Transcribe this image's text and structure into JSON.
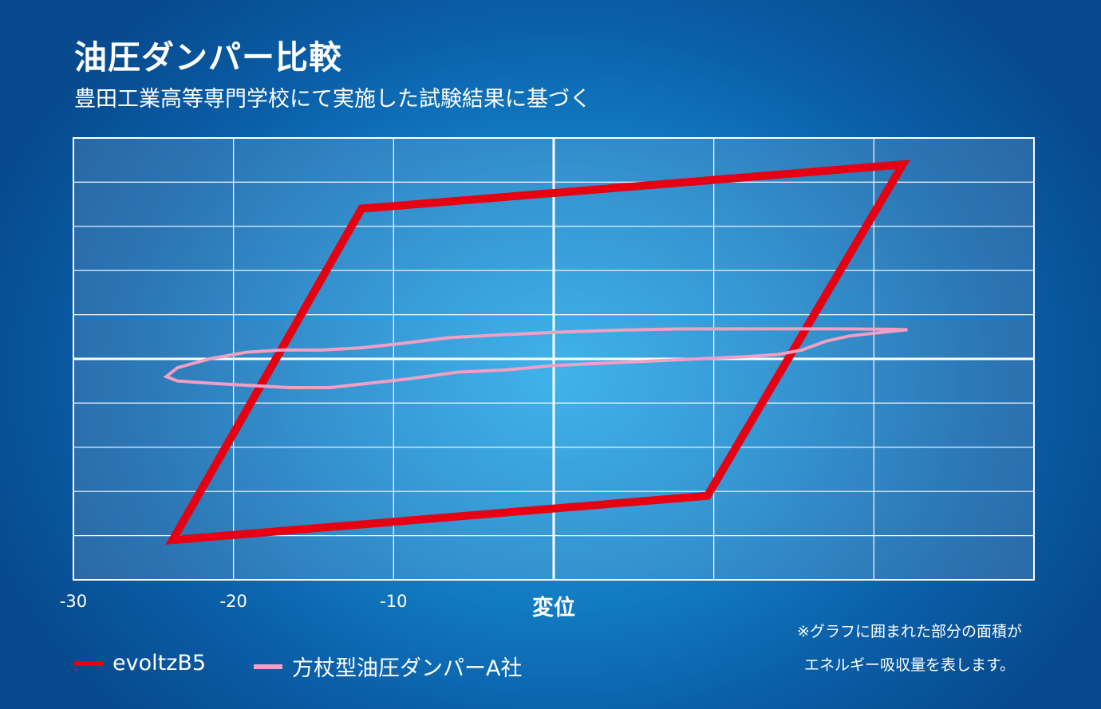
{
  "header": {
    "title": "油圧ダンパー比較",
    "subtitle": "豊田工業高等専門学校にて実施した試験結果に基づく"
  },
  "note": {
    "line1": "※グラフに囲まれた部分の面積が",
    "line2": "エネルギー吸収量を表します。"
  },
  "chart_data": {
    "type": "line",
    "title": "",
    "xlabel": "変位",
    "ylabel": "",
    "xlim": [
      -30,
      30
    ],
    "ylim": [
      -5,
      5
    ],
    "x_tick_labels": [
      "-30",
      "-20",
      "-10"
    ],
    "x_ticks": [
      -30,
      -20,
      -10
    ],
    "grid": true,
    "legend_position": "bottom-left",
    "series": [
      {
        "name": "evoltzB5",
        "color": "#e60012",
        "closed": true,
        "points": [
          [
            -12,
            3.4
          ],
          [
            21.8,
            4.4
          ],
          [
            9.6,
            -3.1
          ],
          [
            -23.8,
            -4.1
          ]
        ]
      },
      {
        "name": "方杖型油圧ダンパーA社",
        "color": "#f29fc5",
        "closed": true,
        "points": [
          [
            -24.2,
            -0.4
          ],
          [
            -23.5,
            -0.2
          ],
          [
            -21.5,
            0.0
          ],
          [
            -19.2,
            0.15
          ],
          [
            -17,
            0.2
          ],
          [
            -14.5,
            0.2
          ],
          [
            -12,
            0.25
          ],
          [
            -9.5,
            0.35
          ],
          [
            -6.5,
            0.48
          ],
          [
            -3,
            0.55
          ],
          [
            0,
            0.6
          ],
          [
            4,
            0.65
          ],
          [
            8,
            0.68
          ],
          [
            12,
            0.68
          ],
          [
            15,
            0.68
          ],
          [
            18,
            0.68
          ],
          [
            21,
            0.67
          ],
          [
            22.1,
            0.66
          ],
          [
            21,
            0.62
          ],
          [
            18.5,
            0.52
          ],
          [
            17,
            0.4
          ],
          [
            15.5,
            0.2
          ],
          [
            14,
            0.1
          ],
          [
            12,
            0.05
          ],
          [
            9,
            0.0
          ],
          [
            6,
            -0.05
          ],
          [
            3,
            -0.1
          ],
          [
            0,
            -0.15
          ],
          [
            -3,
            -0.25
          ],
          [
            -6,
            -0.3
          ],
          [
            -9,
            -0.45
          ],
          [
            -11.5,
            -0.55
          ],
          [
            -14,
            -0.65
          ],
          [
            -16.5,
            -0.65
          ],
          [
            -19,
            -0.6
          ],
          [
            -21.5,
            -0.55
          ],
          [
            -23.5,
            -0.5
          ],
          [
            -24.2,
            -0.4
          ]
        ]
      }
    ]
  }
}
